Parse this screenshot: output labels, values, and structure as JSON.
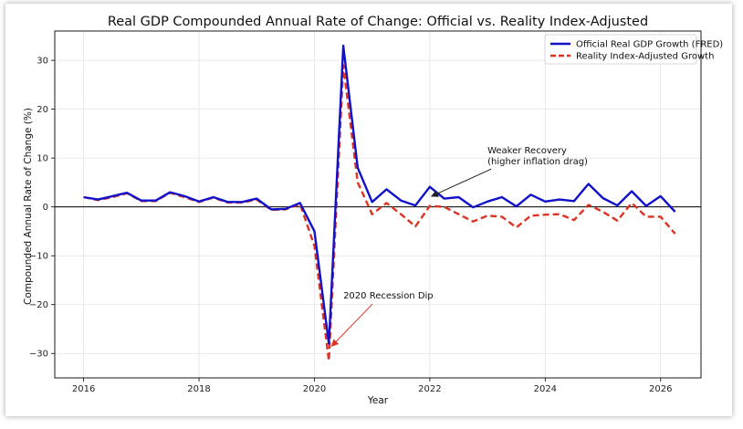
{
  "chart_data": {
    "type": "line",
    "title": "Real GDP Compounded Annual Rate of Change: Official vs. Reality Index-Adjusted",
    "xlabel": "Year",
    "ylabel": "Compounded Annual Rate of Change (%)",
    "xlim": [
      2015.5,
      2026.7
    ],
    "ylim": [
      -35,
      36
    ],
    "x_ticks": [
      2016,
      2018,
      2020,
      2022,
      2024,
      2026
    ],
    "x_tick_labels": [
      "2016",
      "2018",
      "2020",
      "2022",
      "2024",
      "2026"
    ],
    "y_ticks": [
      -30,
      -20,
      -10,
      0,
      10,
      20,
      30
    ],
    "y_tick_labels": [
      "−30",
      "−20",
      "−10",
      "0",
      "10",
      "20",
      "30"
    ],
    "grid": true,
    "legend_position": "top-right",
    "x": [
      2016.0,
      2016.25,
      2016.5,
      2016.75,
      2017.0,
      2017.25,
      2017.5,
      2017.75,
      2018.0,
      2018.25,
      2018.5,
      2018.75,
      2019.0,
      2019.25,
      2019.5,
      2019.75,
      2020.0,
      2020.25,
      2020.5,
      2020.75,
      2021.0,
      2021.25,
      2021.5,
      2021.75,
      2022.0,
      2022.25,
      2022.5,
      2022.75,
      2023.0,
      2023.25,
      2023.5,
      2023.75,
      2024.0,
      2024.25,
      2024.5,
      2024.75,
      2025.0,
      2025.25,
      2025.5,
      2025.75,
      2026.0,
      2026.25
    ],
    "series": [
      {
        "name": "Official Real GDP Growth (FRED)",
        "color": "#1111cc",
        "style": "solid",
        "values": [
          2.0,
          1.5,
          2.2,
          2.9,
          1.3,
          1.3,
          3.0,
          2.2,
          1.1,
          2.0,
          1.0,
          1.0,
          1.7,
          -0.5,
          -0.4,
          0.8,
          -5.0,
          -28.0,
          33.0,
          8.0,
          1.0,
          3.6,
          1.3,
          0.3,
          4.1,
          1.7,
          2.0,
          -0.1,
          1.1,
          2.0,
          0.1,
          2.5,
          1.1,
          1.5,
          1.2,
          4.7,
          1.8,
          0.3,
          3.2,
          0.2,
          2.2,
          -1.0
        ]
      },
      {
        "name": "Reality Index-Adjusted Growth",
        "color": "#dd3322",
        "style": "dashed",
        "values": [
          2.0,
          1.4,
          2.0,
          2.8,
          1.2,
          1.2,
          2.9,
          2.0,
          1.0,
          1.9,
          0.9,
          0.9,
          1.5,
          -0.6,
          -0.5,
          0.6,
          -8.0,
          -31.5,
          29.0,
          5.0,
          -1.5,
          0.8,
          -1.5,
          -4.0,
          0.2,
          0.0,
          -1.5,
          -3.0,
          -1.8,
          -2.0,
          -4.2,
          -1.8,
          -1.6,
          -1.5,
          -2.7,
          0.4,
          -1.0,
          -2.8,
          0.8,
          -2.0,
          -2.0,
          -5.5
        ]
      }
    ],
    "annotations": [
      {
        "text": "2020 Recession Dip",
        "x": 2020.3,
        "y": -28.5,
        "text_x": 2020.5,
        "text_y": -19.5
      },
      {
        "text_lines": [
          "Weaker Recovery",
          "(higher inflation drag)"
        ],
        "x": 2022.0,
        "y": 2.0,
        "text_x": 2023.0,
        "text_y": 10.0
      }
    ]
  }
}
